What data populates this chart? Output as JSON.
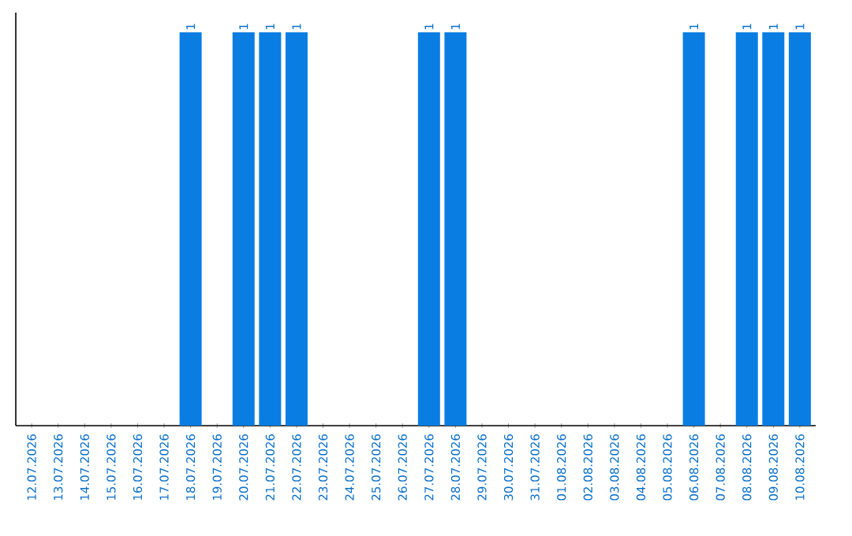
{
  "chart_data": {
    "type": "bar",
    "categories": [
      "12.07.2026",
      "13.07.2026",
      "14.07.2026",
      "15.07.2026",
      "16.07.2026",
      "17.07.2026",
      "18.07.2026",
      "19.07.2026",
      "20.07.2026",
      "21.07.2026",
      "22.07.2026",
      "23.07.2026",
      "24.07.2026",
      "25.07.2026",
      "26.07.2026",
      "27.07.2026",
      "28.07.2026",
      "29.07.2026",
      "30.07.2026",
      "31.07.2026",
      "01.08.2026",
      "02.08.2026",
      "03.08.2026",
      "04.08.2026",
      "05.08.2026",
      "06.08.2026",
      "07.08.2026",
      "08.08.2026",
      "09.08.2026",
      "10.08.2026"
    ],
    "values": [
      0,
      0,
      0,
      0,
      0,
      0,
      1,
      0,
      1,
      1,
      1,
      0,
      0,
      0,
      0,
      1,
      1,
      0,
      0,
      0,
      0,
      0,
      0,
      0,
      0,
      1,
      0,
      1,
      1,
      1
    ],
    "value_labels": [
      null,
      null,
      null,
      null,
      null,
      null,
      "1",
      null,
      "1",
      "1",
      "1",
      null,
      null,
      null,
      null,
      "1",
      "1",
      null,
      null,
      null,
      null,
      null,
      null,
      null,
      null,
      "1",
      null,
      "1",
      "1",
      "1"
    ],
    "color": "#0a7de2"
  }
}
